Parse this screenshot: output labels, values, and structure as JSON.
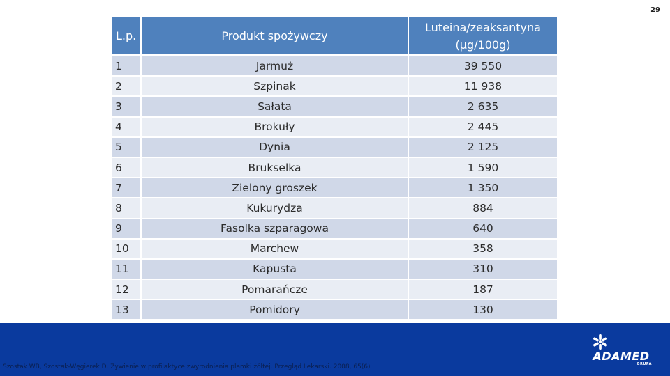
{
  "page_number": "29",
  "table": {
    "headers": {
      "lp": "L.p.",
      "product": "Produkt spożywczy",
      "lutein": "Luteina/zeaksantyna (µg/100g)"
    },
    "rows": [
      {
        "lp": "1",
        "product": "Jarmuż",
        "value": "39 550"
      },
      {
        "lp": "2",
        "product": "Szpinak",
        "value": "11 938"
      },
      {
        "lp": "3",
        "product": "Sałata",
        "value": "2 635"
      },
      {
        "lp": "4",
        "product": "Brokuły",
        "value": "2 445"
      },
      {
        "lp": "5",
        "product": "Dynia",
        "value": "2 125"
      },
      {
        "lp": "6",
        "product": "Brukselka",
        "value": "1 590"
      },
      {
        "lp": "7",
        "product": "Zielony groszek",
        "value": "1 350"
      },
      {
        "lp": "8",
        "product": "Kukurydza",
        "value": "884"
      },
      {
        "lp": "9",
        "product": "Fasolka szparagowa",
        "value": "640"
      },
      {
        "lp": "10",
        "product": "Marchew",
        "value": "358"
      },
      {
        "lp": "11",
        "product": "Kapusta",
        "value": "310"
      },
      {
        "lp": "12",
        "product": "Pomarańcze",
        "value": "187"
      },
      {
        "lp": "13",
        "product": "Pomidory",
        "value": "130"
      }
    ]
  },
  "footer": {
    "citation": "Szostak WB, Szostak-Węgierek D. Żywienie w profilaktyce zwyrodnienia plamki żółtej. Przegląd Lekarski. 2008, 65(6)",
    "logo": {
      "word": "ADAMED",
      "sub": "GRUPA",
      "icon": "adamed-star-logo-icon"
    }
  },
  "colors": {
    "header_bg": "#4f81bd",
    "row_odd": "#d0d8e8",
    "row_even": "#e9edf4",
    "footer_band": "#0a3a9e"
  }
}
